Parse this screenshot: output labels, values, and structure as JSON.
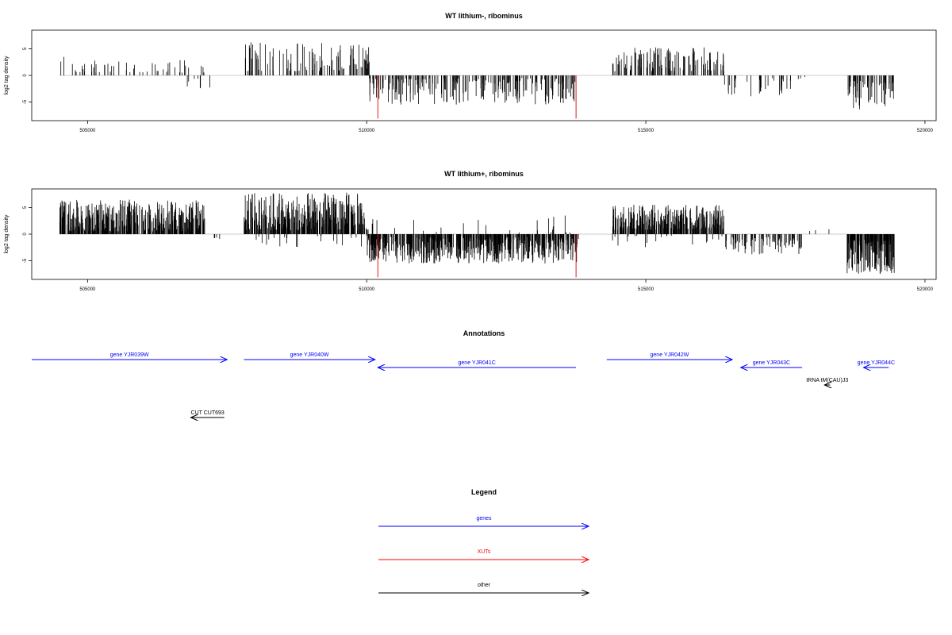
{
  "chart_data": [
    {
      "type": "bar",
      "title": "WT lithium-, ribominus",
      "ylabel": "log2 tag density",
      "xlabel": "",
      "xlim": [
        504000,
        520200
      ],
      "ylim": [
        -8.5,
        8.5
      ],
      "x_ticks": [
        "505000",
        "510000",
        "515000",
        "520000"
      ],
      "x_tick_values": [
        505000,
        510000,
        515000,
        520000
      ],
      "y_ticks": [
        "5",
        "0",
        "-5"
      ],
      "y_tick_values": [
        5,
        0,
        -5
      ],
      "grid": false,
      "segments": [
        {
          "start": 504500,
          "end": 507100,
          "sign": 1,
          "min": 0.5,
          "max": 3.5,
          "density": 0.02
        },
        {
          "start": 506700,
          "end": 507300,
          "sign": -1,
          "min": 0.5,
          "max": 2.5,
          "density": 0.012
        },
        {
          "start": 507800,
          "end": 510050,
          "sign": 1,
          "min": 0.8,
          "max": 6.3,
          "density": 0.045
        },
        {
          "start": 510000,
          "end": 513800,
          "sign": -1,
          "min": 0.5,
          "max": 5.5,
          "density": 0.06
        },
        {
          "start": 514400,
          "end": 516400,
          "sign": 1,
          "min": 0.8,
          "max": 5.5,
          "density": 0.06
        },
        {
          "start": 516400,
          "end": 517600,
          "sign": -1,
          "min": 0.5,
          "max": 4,
          "density": 0.025
        },
        {
          "start": 517600,
          "end": 518100,
          "sign": -1,
          "min": 0.3,
          "max": 1.5,
          "density": 0.006
        },
        {
          "start": 518600,
          "end": 519450,
          "sign": -1,
          "min": 1,
          "max": 6.5,
          "density": 0.07
        }
      ],
      "red_marks": [
        {
          "x": 510200,
          "y": -8.1
        },
        {
          "x": 513750,
          "y": -8.1
        }
      ],
      "colors": {
        "bars": "#000000",
        "xuts": "#e31a1c",
        "baseline": "#999999"
      }
    },
    {
      "type": "bar",
      "title": "WT lithium+, ribominus",
      "ylabel": "log2 tag density",
      "xlabel": "",
      "xlim": [
        504000,
        520200
      ],
      "ylim": [
        -8.5,
        8.5
      ],
      "x_ticks": [
        "505000",
        "510000",
        "515000",
        "520000"
      ],
      "x_tick_values": [
        505000,
        510000,
        515000,
        520000
      ],
      "y_ticks": [
        "5",
        "0",
        "-5"
      ],
      "y_tick_values": [
        5,
        0,
        -5
      ],
      "grid": false,
      "segments": [
        {
          "start": 504500,
          "end": 507100,
          "sign": 1,
          "min": 0.5,
          "max": 6.5,
          "density": 0.15
        },
        {
          "start": 507200,
          "end": 507400,
          "sign": -1,
          "min": 0.5,
          "max": 2.5,
          "density": 0.02
        },
        {
          "start": 507800,
          "end": 510050,
          "sign": 1,
          "min": 0.8,
          "max": 7.8,
          "density": 0.15
        },
        {
          "start": 507800,
          "end": 510050,
          "sign": -1,
          "min": 0.3,
          "max": 2.5,
          "density": 0.01
        },
        {
          "start": 510000,
          "end": 513800,
          "sign": -1,
          "min": 0.5,
          "max": 5.5,
          "density": 0.15
        },
        {
          "start": 510000,
          "end": 513800,
          "sign": 1,
          "min": 0.3,
          "max": 3.5,
          "density": 0.006
        },
        {
          "start": 514400,
          "end": 516400,
          "sign": 1,
          "min": 0.8,
          "max": 5.5,
          "density": 0.15
        },
        {
          "start": 514400,
          "end": 516400,
          "sign": -1,
          "min": 0.3,
          "max": 2.5,
          "density": 0.01
        },
        {
          "start": 516400,
          "end": 517800,
          "sign": -1,
          "min": 0.5,
          "max": 4,
          "density": 0.06
        },
        {
          "start": 517800,
          "end": 518300,
          "sign": 1,
          "min": 0.3,
          "max": 2,
          "density": 0.006
        },
        {
          "start": 518600,
          "end": 519450,
          "sign": -1,
          "min": 1,
          "max": 7.5,
          "density": 0.2
        }
      ],
      "red_marks": [
        {
          "x": 510200,
          "y": -8.1
        },
        {
          "x": 513750,
          "y": -8.1
        }
      ],
      "colors": {
        "bars": "#000000",
        "xuts": "#e31a1c",
        "baseline": "#999999"
      }
    }
  ],
  "annotations": {
    "title": "Annotations",
    "features": [
      {
        "label": "gene YJR039W",
        "start": 504000,
        "end": 507500,
        "strand": "+",
        "type": "gene"
      },
      {
        "label": "gene YJR040W",
        "start": 507800,
        "end": 510150,
        "strand": "+",
        "type": "gene"
      },
      {
        "label": "gene YJR041C",
        "start": 510200,
        "end": 513750,
        "strand": "-",
        "type": "gene"
      },
      {
        "label": "gene YJR042W",
        "start": 514300,
        "end": 516550,
        "strand": "+",
        "type": "gene"
      },
      {
        "label": "gene YJR043C",
        "start": 516700,
        "end": 517800,
        "strand": "-",
        "type": "gene"
      },
      {
        "label": "gene YJR044C",
        "start": 518900,
        "end": 519350,
        "strand": "-",
        "type": "gene"
      },
      {
        "label": "tRNA tM(CAU)J3",
        "start": 518200,
        "end": 518300,
        "strand": "-",
        "type": "other"
      },
      {
        "label": "CUT CUT693",
        "start": 506850,
        "end": 507450,
        "strand": "-",
        "type": "other"
      }
    ],
    "colors": {
      "gene": "#0000ff",
      "xut": "#ff0000",
      "other": "#000000"
    }
  },
  "legend": {
    "title": "Legend",
    "items": [
      {
        "label": "genes",
        "color": "#0000ff"
      },
      {
        "label": "XUTs",
        "color": "#ff0000"
      },
      {
        "label": "other",
        "color": "#000000"
      }
    ]
  }
}
